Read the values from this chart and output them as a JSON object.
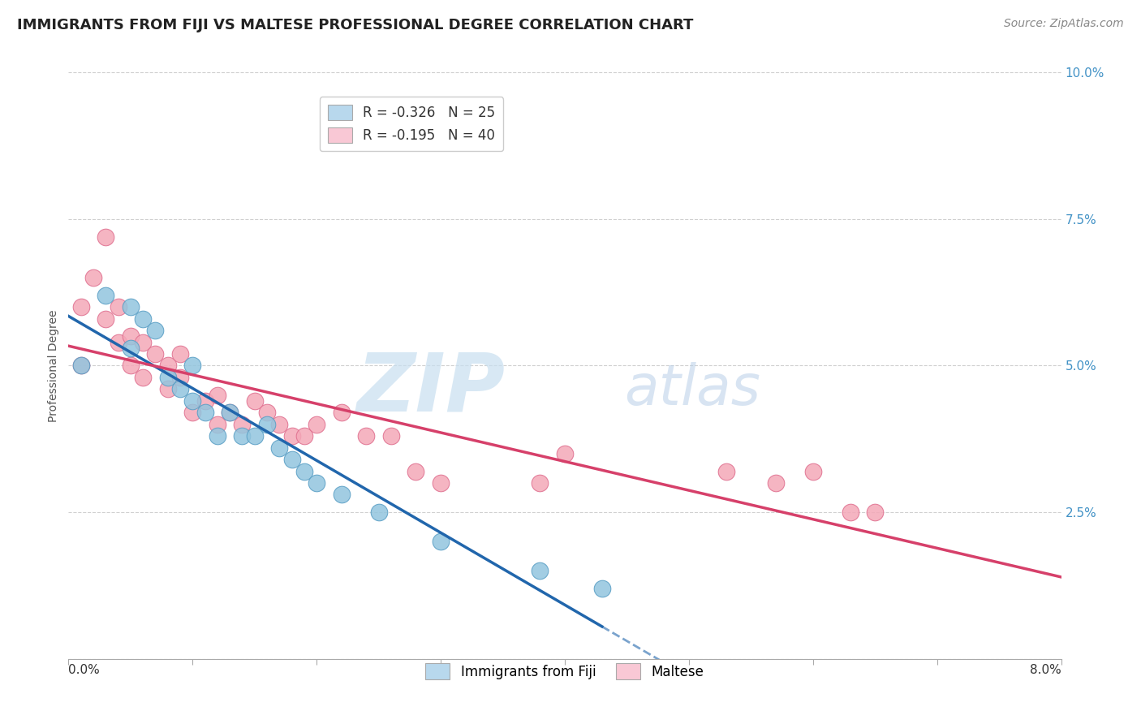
{
  "title": "IMMIGRANTS FROM FIJI VS MALTESE PROFESSIONAL DEGREE CORRELATION CHART",
  "source": "Source: ZipAtlas.com",
  "ylabel": "Professional Degree",
  "xlim": [
    0.0,
    0.08
  ],
  "ylim": [
    0.0,
    0.1
  ],
  "y_ticks": [
    0.0,
    0.025,
    0.05,
    0.075,
    0.1
  ],
  "watermark_zip": "ZIP",
  "watermark_atlas": "atlas",
  "fiji_color": "#92c5de",
  "fiji_edge": "#5a9fc5",
  "maltese_color": "#f4a8b8",
  "maltese_edge": "#e07090",
  "fiji_R": -0.326,
  "fiji_N": 25,
  "maltese_R": -0.195,
  "maltese_N": 40,
  "fiji_legend_color": "#b8d8ed",
  "maltese_legend_color": "#f9c8d5",
  "fiji_line_color": "#2166ac",
  "maltese_line_color": "#d6406a",
  "fiji_points_x": [
    0.001,
    0.003,
    0.005,
    0.005,
    0.006,
    0.007,
    0.008,
    0.009,
    0.01,
    0.01,
    0.011,
    0.012,
    0.013,
    0.014,
    0.015,
    0.016,
    0.017,
    0.018,
    0.019,
    0.02,
    0.022,
    0.025,
    0.03,
    0.038,
    0.043
  ],
  "fiji_points_y": [
    0.05,
    0.062,
    0.06,
    0.053,
    0.058,
    0.056,
    0.048,
    0.046,
    0.05,
    0.044,
    0.042,
    0.038,
    0.042,
    0.038,
    0.038,
    0.04,
    0.036,
    0.034,
    0.032,
    0.03,
    0.028,
    0.025,
    0.02,
    0.015,
    0.012
  ],
  "maltese_points_x": [
    0.001,
    0.001,
    0.002,
    0.003,
    0.003,
    0.004,
    0.004,
    0.005,
    0.005,
    0.006,
    0.006,
    0.007,
    0.008,
    0.008,
    0.009,
    0.009,
    0.01,
    0.011,
    0.012,
    0.012,
    0.013,
    0.014,
    0.015,
    0.016,
    0.017,
    0.018,
    0.019,
    0.02,
    0.022,
    0.024,
    0.026,
    0.028,
    0.03,
    0.038,
    0.04,
    0.053,
    0.057,
    0.06,
    0.063,
    0.065
  ],
  "maltese_points_y": [
    0.06,
    0.05,
    0.065,
    0.072,
    0.058,
    0.06,
    0.054,
    0.055,
    0.05,
    0.048,
    0.054,
    0.052,
    0.046,
    0.05,
    0.048,
    0.052,
    0.042,
    0.044,
    0.045,
    0.04,
    0.042,
    0.04,
    0.044,
    0.042,
    0.04,
    0.038,
    0.038,
    0.04,
    0.042,
    0.038,
    0.038,
    0.032,
    0.03,
    0.03,
    0.035,
    0.032,
    0.03,
    0.032,
    0.025,
    0.025
  ],
  "grid_color": "#d0d0d0",
  "background_color": "#ffffff",
  "title_fontsize": 13,
  "axis_label_fontsize": 10,
  "tick_fontsize": 11,
  "legend_fontsize": 12,
  "source_fontsize": 10
}
